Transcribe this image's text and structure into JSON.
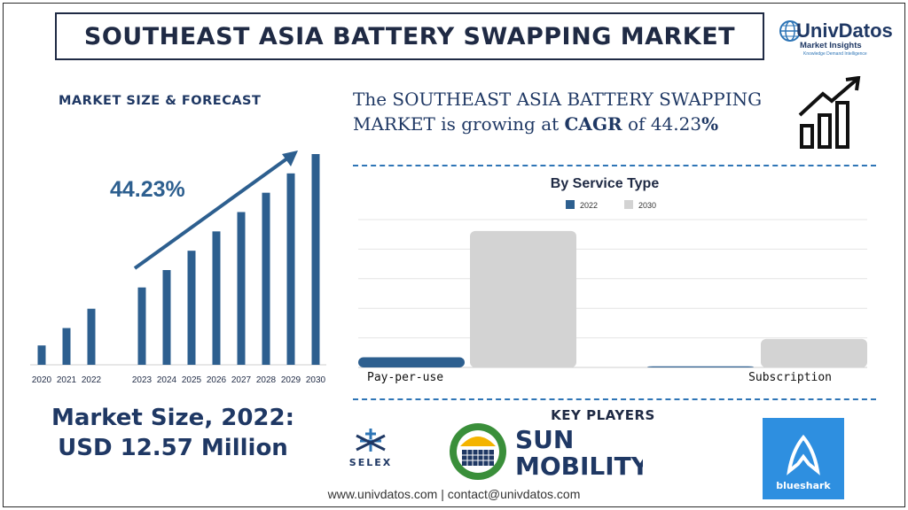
{
  "title": "SOUTHEAST ASIA BATTERY SWAPPING MARKET",
  "logo": {
    "name": "UnivDatos",
    "sub": "Market Insights",
    "tagline": "Knowledge Demand Intelligence"
  },
  "market_heading": "MARKET SIZE & FORECAST",
  "cagr_sentence": {
    "part1": "The SOUTHEAST ASIA BATTERY SWAPPING",
    "part2": "MARKET is growing at ",
    "cagr_label": "CAGR",
    "part3": " of 44.23",
    "pct": "%"
  },
  "market_size": {
    "line1": "Market Size, 2022:",
    "line2": "USD 12.57 Million"
  },
  "key_players_heading": "KEY PLAYERS",
  "players": {
    "selex": "SELEX",
    "sun1": "SUN",
    "sun2": "MOBILITY",
    "blueshark": "blueshark"
  },
  "footer": "www.univdatos.com | contact@univdatos.com",
  "colors": {
    "bar_dark": "#2d5f8f",
    "bar_light": "#d3d3d3",
    "navy": "#1f3864"
  },
  "icons": [
    "globe-icon",
    "growth-chart-icon",
    "arrow-up-right-icon"
  ],
  "chart_data": [
    {
      "type": "bar",
      "categories": [
        "2020",
        "2021",
        "2022",
        "2023",
        "2024",
        "2025",
        "2026",
        "2027",
        "2028",
        "2029",
        "2030"
      ],
      "values": [
        1,
        1.9,
        2.9,
        4,
        4.9,
        5.9,
        6.9,
        7.9,
        8.9,
        9.9,
        10.9
      ],
      "annotation": "44.23%",
      "title": "",
      "xlabel": "",
      "ylabel": ""
    },
    {
      "type": "bar",
      "title": "By Service Type",
      "categories": [
        "Pay-per-use",
        "Subscription"
      ],
      "series": [
        {
          "name": "2022",
          "values": [
            0.45,
            0.05
          ]
        },
        {
          "name": "2030",
          "values": [
            6.0,
            1.25
          ]
        }
      ],
      "ylim": [
        0,
        6.5
      ],
      "grid": true,
      "legend": "top-center"
    }
  ]
}
